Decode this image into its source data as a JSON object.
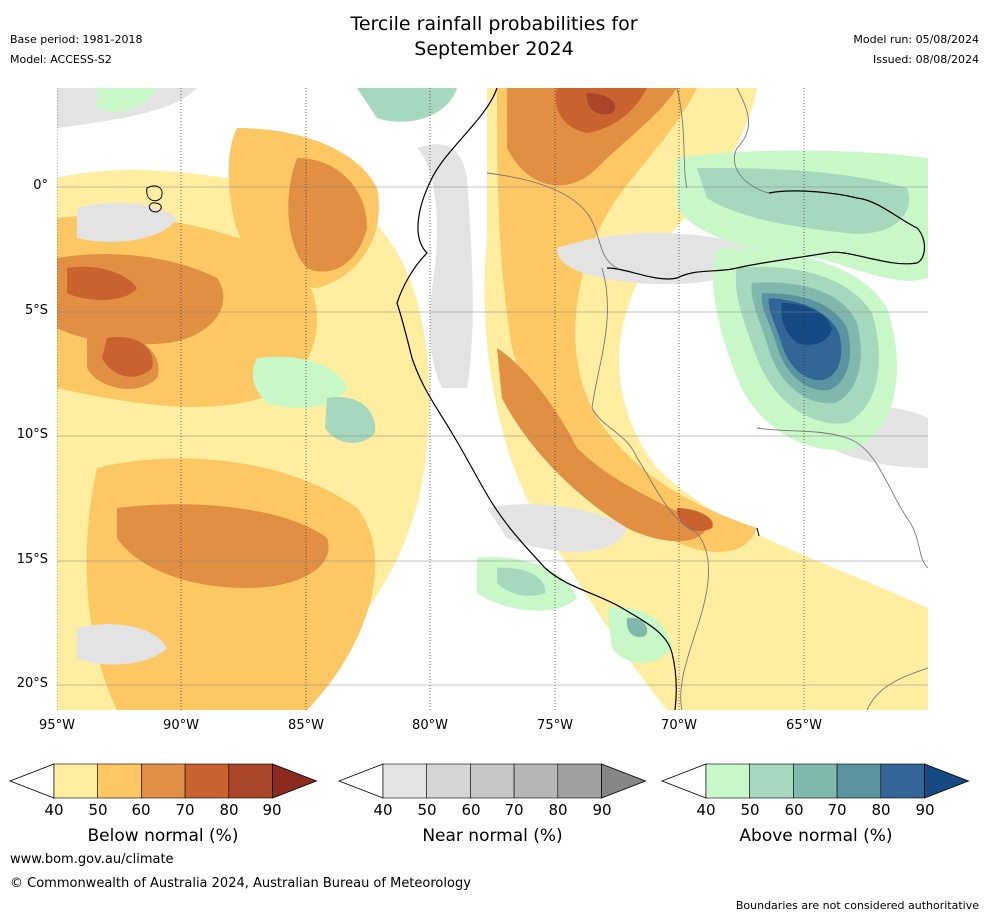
{
  "title_line1": "Tercile rainfall probabilities for",
  "title_line2": "September 2024",
  "base_period": "Base period: 1981-2018",
  "model": "Model: ACCESS-S2",
  "model_run": "Model run: 05/08/2024",
  "issued": "Issued: 08/08/2024",
  "lat_labels": [
    "0°",
    "5°S",
    "10°S",
    "15°S",
    "20°S"
  ],
  "lon_labels": [
    "95°W",
    "90°W",
    "85°W",
    "80°W",
    "75°W",
    "70°W",
    "65°W"
  ],
  "colorbars": [
    {
      "label": "Below normal (%)",
      "ticks": [
        "40",
        "50",
        "60",
        "70",
        "80",
        "90"
      ],
      "colors": [
        "#ffeea0",
        "#fdc763",
        "#e08f43",
        "#c9622f",
        "#a9462a",
        "#8b2b1e"
      ]
    },
    {
      "label": "Near normal (%)",
      "ticks": [
        "40",
        "50",
        "60",
        "70",
        "80",
        "90"
      ],
      "colors": [
        "#e3e3e3",
        "#d5d5d5",
        "#c6c6c6",
        "#b6b6b6",
        "#a0a0a0",
        "#868686"
      ]
    },
    {
      "label": "Above normal (%)",
      "ticks": [
        "40",
        "50",
        "60",
        "70",
        "80",
        "90"
      ],
      "colors": [
        "#c8f7c8",
        "#a5d8bc",
        "#80b8ad",
        "#5c93a0",
        "#336596",
        "#154a84"
      ]
    }
  ],
  "website": "www.bom.gov.au/climate",
  "copyright": "© Commonwealth of Australia 2024, Australian Bureau of Meteorology",
  "disclaimer": "Boundaries are not considered authoritative"
}
